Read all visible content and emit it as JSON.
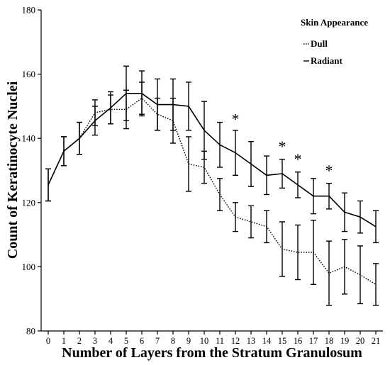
{
  "chart_data": {
    "type": "line",
    "xlabel": "Number of Layers from the Stratum Granulosum",
    "ylabel": "Count of Keratinocyte Nuclei",
    "x": [
      0,
      1,
      2,
      3,
      4,
      5,
      6,
      7,
      8,
      9,
      10,
      11,
      12,
      13,
      14,
      15,
      16,
      17,
      18,
      19,
      20,
      21
    ],
    "xlim": [
      0,
      21
    ],
    "ylim": [
      80,
      180
    ],
    "yticks": [
      80,
      100,
      120,
      140,
      160,
      180
    ],
    "grid": false,
    "legend": {
      "title": "Skin Appearance",
      "placement": "top-right"
    },
    "series": [
      {
        "name": "Dull",
        "style": "dotted",
        "values": [
          125.5,
          136,
          140,
          148,
          149,
          149,
          152.5,
          147.5,
          145.5,
          132,
          131,
          122.5,
          115.5,
          114,
          112.5,
          105.5,
          104.5,
          104.5,
          98,
          100,
          97.5,
          94.5
        ],
        "errors": [
          5,
          4.5,
          5,
          4,
          4.5,
          6,
          5,
          5,
          7,
          8.5,
          5,
          5,
          4.5,
          5,
          5,
          8.5,
          8.5,
          10,
          10,
          8.5,
          9,
          6.5
        ]
      },
      {
        "name": "Radiant",
        "style": "solid",
        "values": [
          125.5,
          136,
          140,
          145.5,
          149.5,
          154,
          154,
          150.5,
          150.5,
          150,
          142.5,
          138,
          135.5,
          132,
          128.5,
          129,
          125.5,
          122,
          122,
          117,
          115.5,
          112.5
        ],
        "errors": [
          5,
          4.5,
          5,
          4.5,
          5,
          8.5,
          7,
          8,
          8,
          7.5,
          9,
          7,
          7,
          7,
          6,
          4.5,
          4,
          5.5,
          4,
          6,
          5,
          5
        ]
      }
    ],
    "annotations": [
      {
        "text": "*",
        "x": 12,
        "y": 147
      },
      {
        "text": "*",
        "x": 15,
        "y": 138.5
      },
      {
        "text": "*",
        "x": 16,
        "y": 134.5
      },
      {
        "text": "*",
        "x": 18,
        "y": 131
      }
    ]
  }
}
